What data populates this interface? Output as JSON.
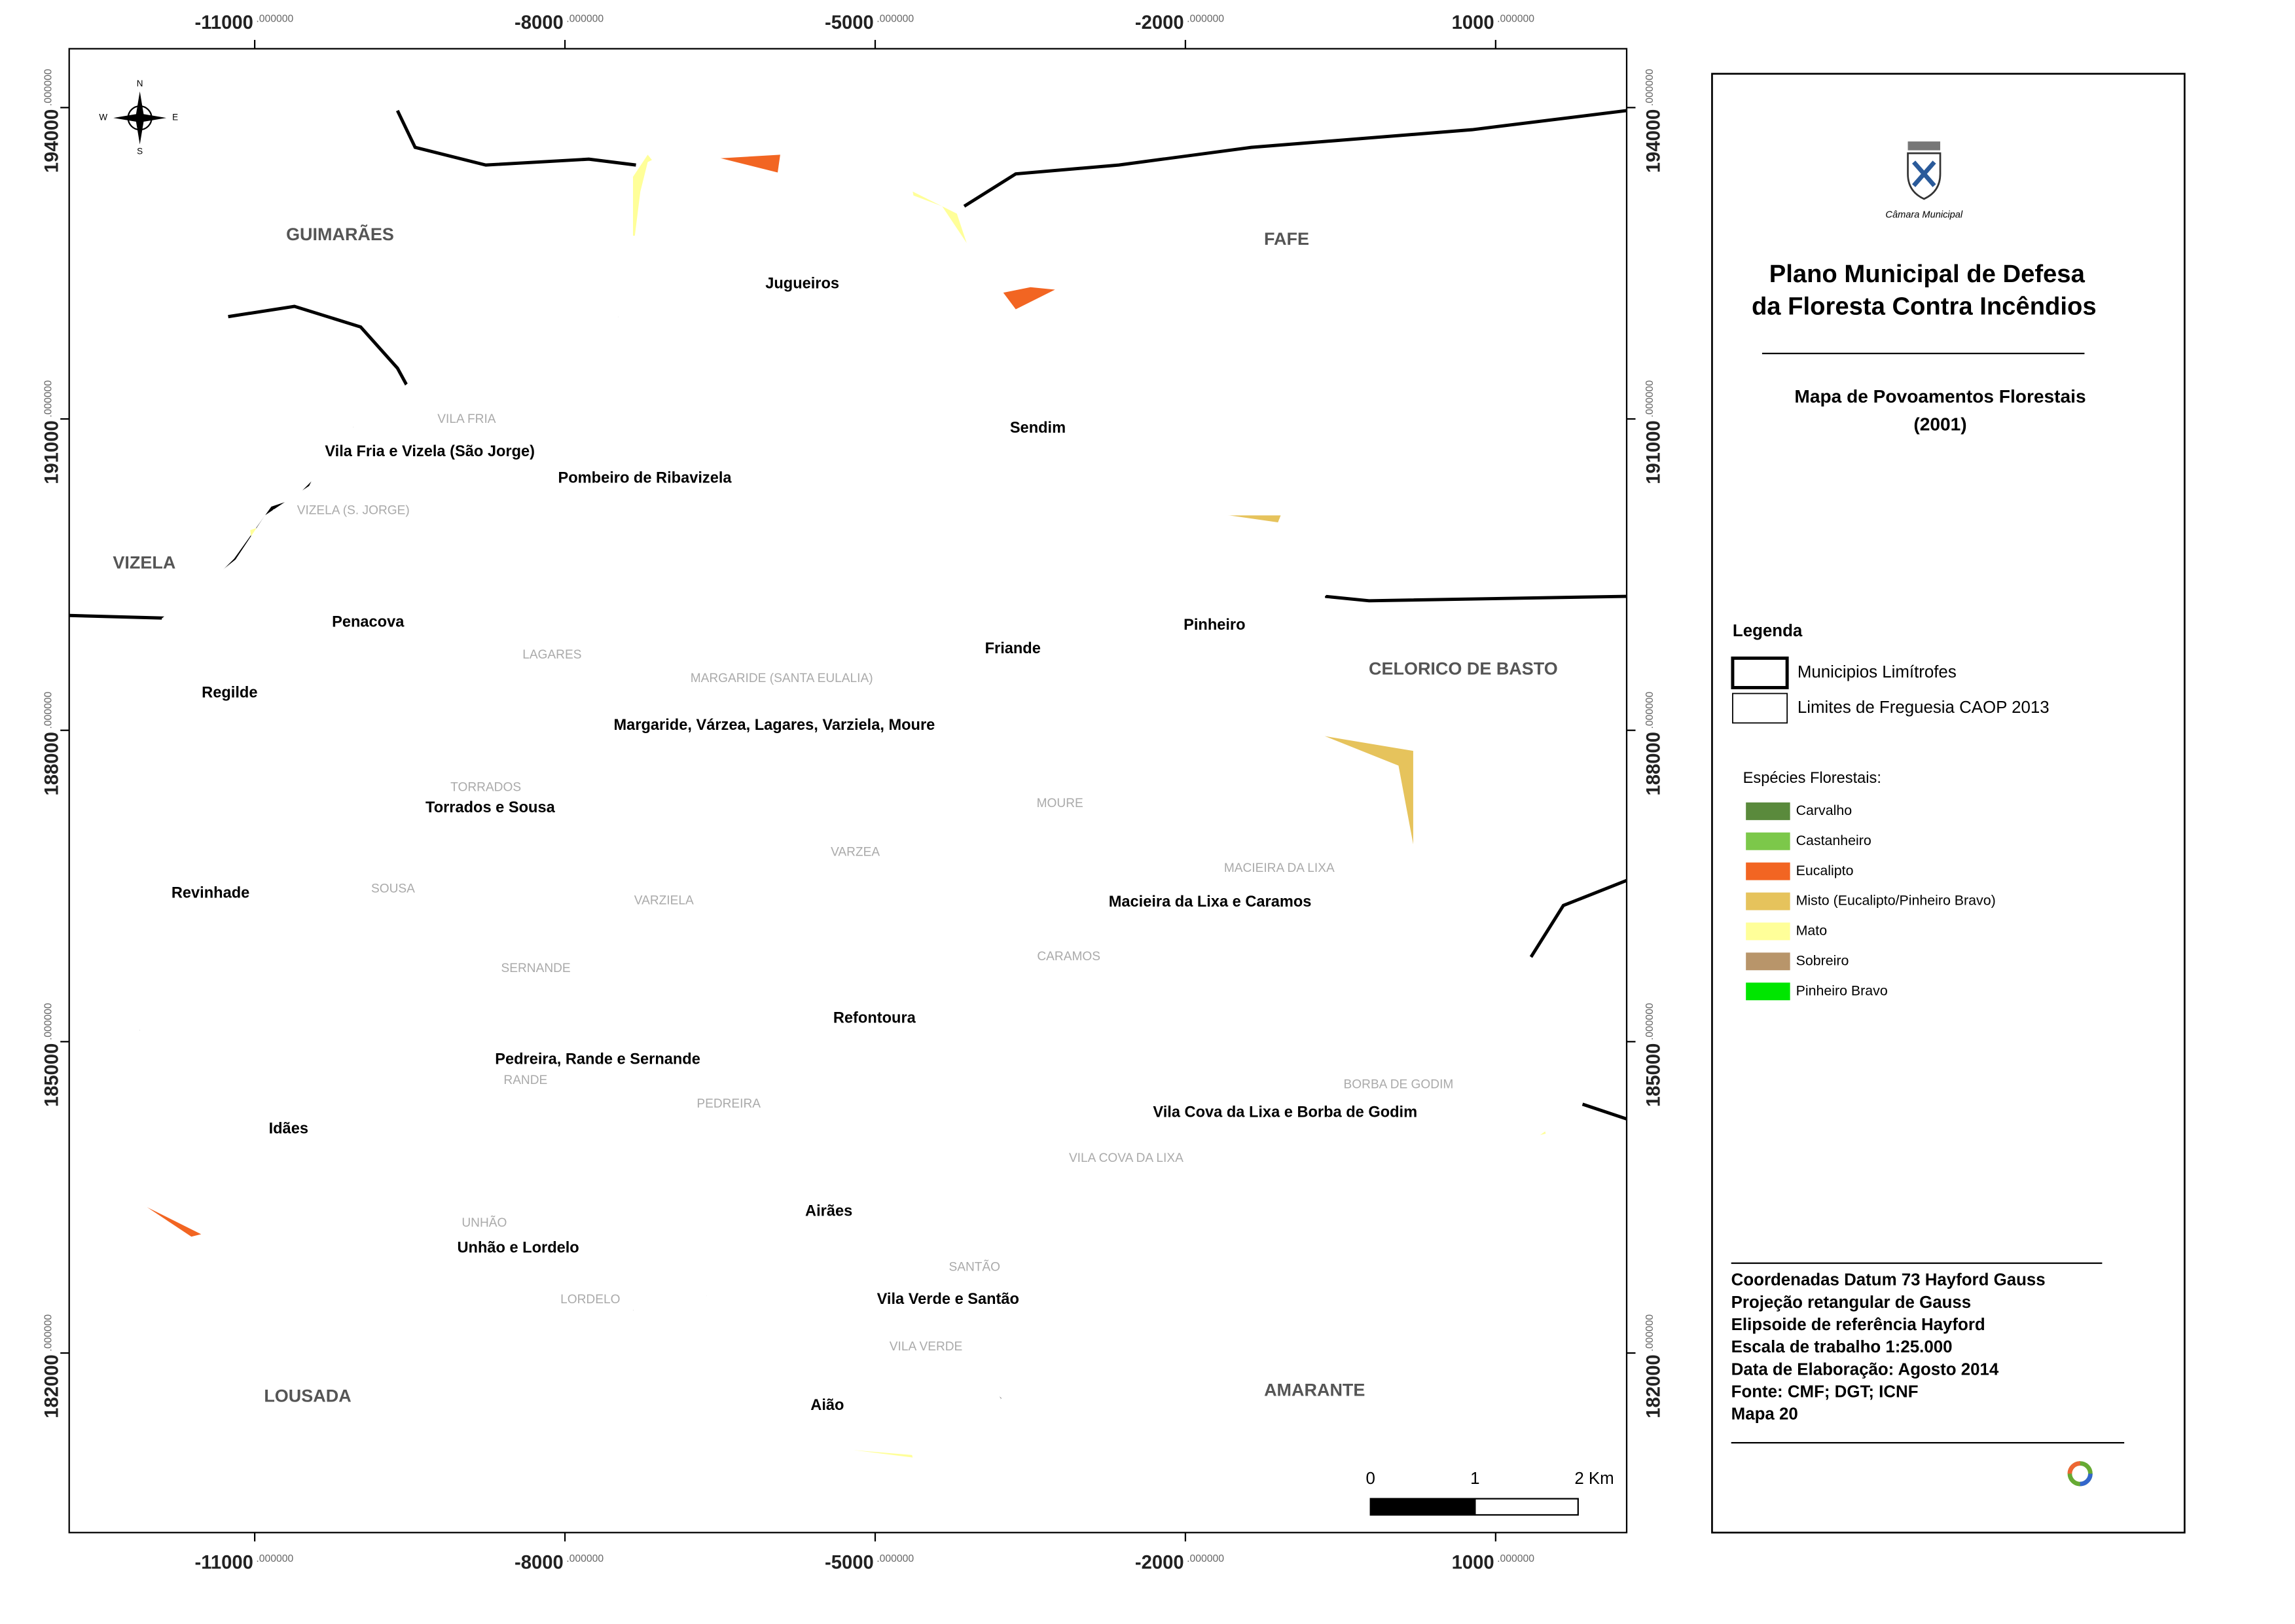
{
  "map": {
    "compass": {
      "n": "N",
      "s": "S",
      "e": "E",
      "w": "W"
    },
    "xticks": [
      -11000,
      -8000,
      -5000,
      -2000,
      1000
    ],
    "yticks": [
      194000,
      191000,
      188000,
      185000,
      182000
    ],
    "tick_decimals": ".000000",
    "xlim": [
      -12794,
      2267
    ],
    "ylim": [
      180270,
      194567
    ],
    "municipalities": [
      "GUIMARÃES",
      "FAFE",
      "VIZELA",
      "CELORICO DE BASTO",
      "LOUSADA",
      "AMARANTE"
    ],
    "parishes": [
      "Jugueiros",
      "Sendim",
      "Vila Fria e Vizela (São Jorge)",
      "Pombeiro de Ribavizela",
      "Penacova",
      "Friande",
      "Pinheiro",
      "Regilde",
      "Margaride, Várzea, Lagares, Varziela, Moure",
      "Torrados e Sousa",
      "Revinhade",
      "Macieira da Lixa e Caramos",
      "Refontoura",
      "Pedreira, Rande e Sernande",
      "Vila Cova da Lixa e Borba de Godim",
      "Idães",
      "Airães",
      "Unhão e Lordelo",
      "Vila Verde e Santão",
      "Aião"
    ],
    "former_parishes": [
      "VILA FRIA",
      "VIZELA (S. JORGE)",
      "LAGARES",
      "MARGARIDE (SANTA EULALIA)",
      "TORRADOS",
      "MOURE",
      "MACIEIRA DA LIXA",
      "VARZEA",
      "SOUSA",
      "VARZIELA",
      "CARAMOS",
      "SERNANDE",
      "RANDE",
      "PEDREIRA",
      "BORBA DE GODIM",
      "VILA COVA DA LIXA",
      "UNHÃO",
      "SANTÃO",
      "LORDELO",
      "VILA VERDE"
    ],
    "scale_bar": {
      "labels": [
        "0",
        "1",
        "2 Km"
      ]
    }
  },
  "panel": {
    "logo_caption": "Câmara Municipal",
    "title": [
      "Plano Municipal de Defesa",
      "da Floresta Contra Incêndios"
    ],
    "subtitle": [
      "Mapa de Povoamentos Florestais",
      "(2001)"
    ],
    "legend": {
      "title": "Legenda",
      "boundaries": [
        "Municipios Limítrofes",
        "Limites de Freguesia CAOP 2013"
      ],
      "species_title": "Espécies Florestais:",
      "species": [
        {
          "name": "Carvalho",
          "color": "#5a8a3c"
        },
        {
          "name": "Castanheiro",
          "color": "#7cc84a"
        },
        {
          "name": "Eucalipto",
          "color": "#f26522"
        },
        {
          "name": "Misto (Eucalipto/Pinheiro Bravo)",
          "color": "#e6c35c"
        },
        {
          "name": "Mato",
          "color": "#ffff99"
        },
        {
          "name": "Sobreiro",
          "color": "#b8956a"
        },
        {
          "name": "Pinheiro Bravo",
          "color": "#00e600"
        }
      ]
    },
    "info": [
      "Coordenadas Datum 73 Hayford Gauss",
      "Projeção retangular de Gauss",
      "Elipsoide de referência Hayford",
      "Escala de trabalho 1:25.000",
      "Data de Elaboração: Agosto 2014",
      "Fonte: CMF; DGT; ICNF",
      "Mapa 20"
    ]
  }
}
